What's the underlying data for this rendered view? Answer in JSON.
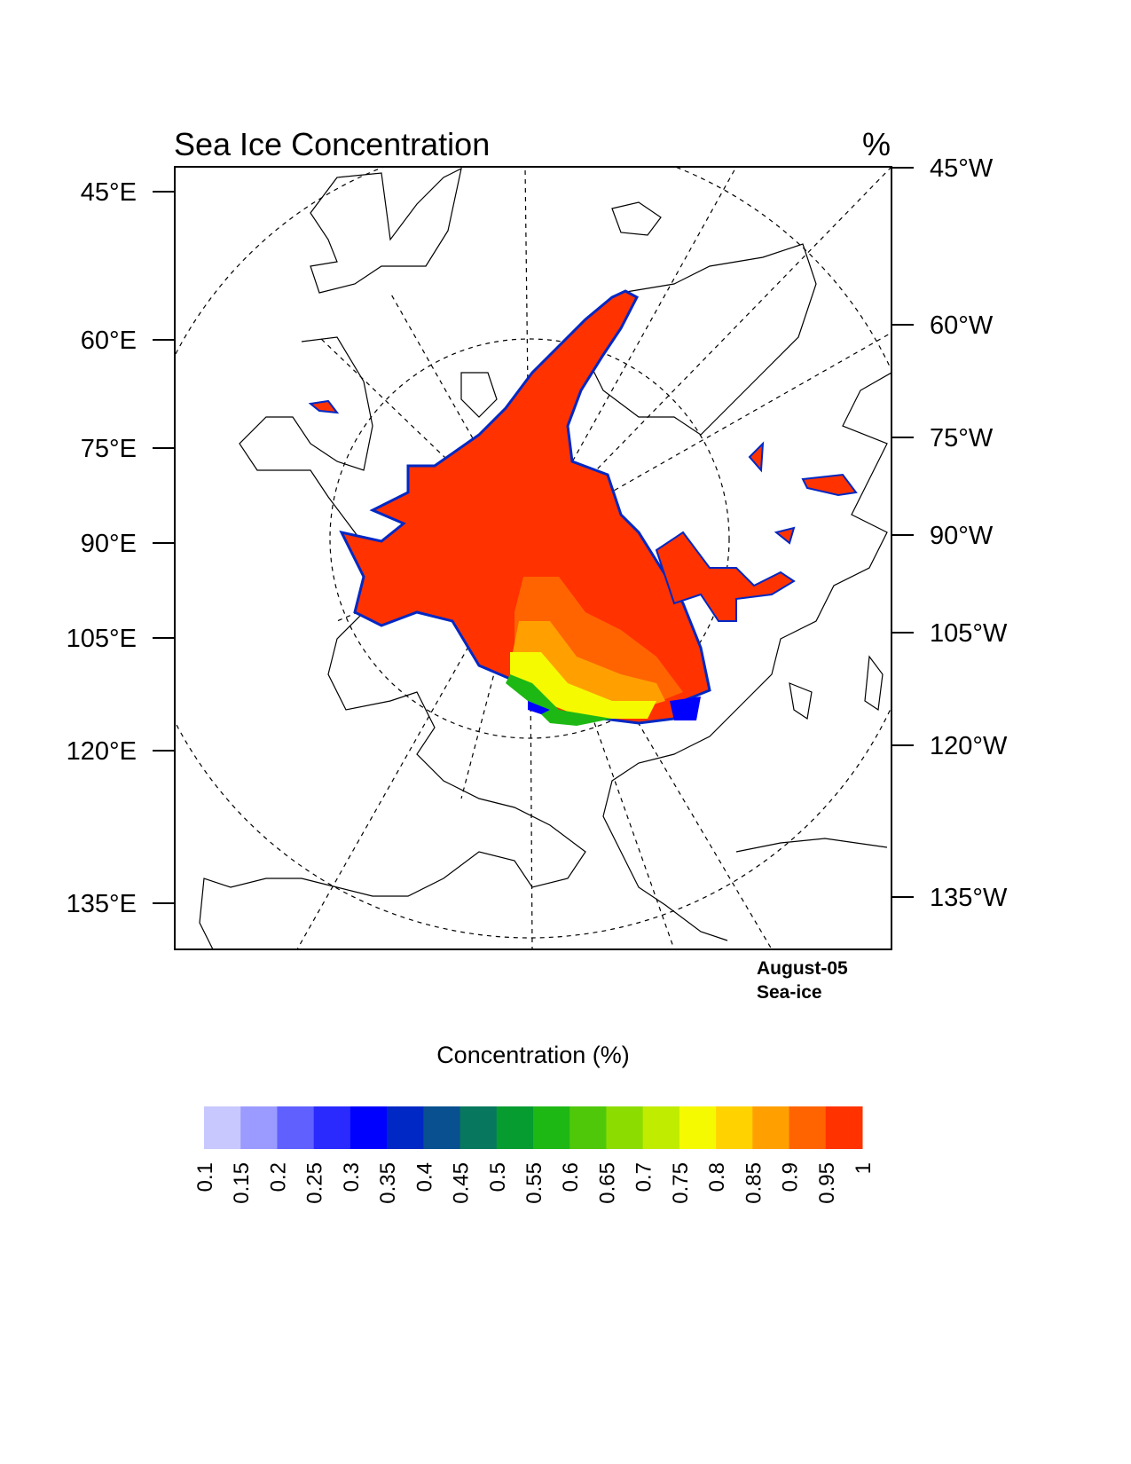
{
  "chart_data": {
    "type": "heatmap",
    "title": "Sea Ice Concentration",
    "units": "%",
    "projection": "polar stereographic (Arctic)",
    "left_tick_labels": [
      "45°E",
      "60°E",
      "75°E",
      "90°E",
      "105°E",
      "120°E",
      "135°E"
    ],
    "right_tick_labels": [
      "45°W",
      "60°W",
      "75°W",
      "90°W",
      "105°W",
      "120°W",
      "135°W"
    ],
    "annotation_lines": [
      "August-05",
      "Sea-ice"
    ],
    "colorbar": {
      "title": "Concentration (%)",
      "levels": [
        "0.1",
        "0.15",
        "0.2",
        "0.25",
        "0.3",
        "0.35",
        "0.4",
        "0.45",
        "0.5",
        "0.55",
        "0.6",
        "0.65",
        "0.7",
        "0.75",
        "0.8",
        "0.85",
        "0.9",
        "0.95",
        "1"
      ],
      "colors": [
        "#c8c8ff",
        "#9b9bff",
        "#6060ff",
        "#2a2aff",
        "#0000ff",
        "#0028c4",
        "#08508f",
        "#07785e",
        "#069c30",
        "#1eb814",
        "#50c80a",
        "#8cdc00",
        "#c0ec00",
        "#f5fa00",
        "#ffd200",
        "#ffa000",
        "#ff6400",
        "#ff3200"
      ]
    }
  }
}
